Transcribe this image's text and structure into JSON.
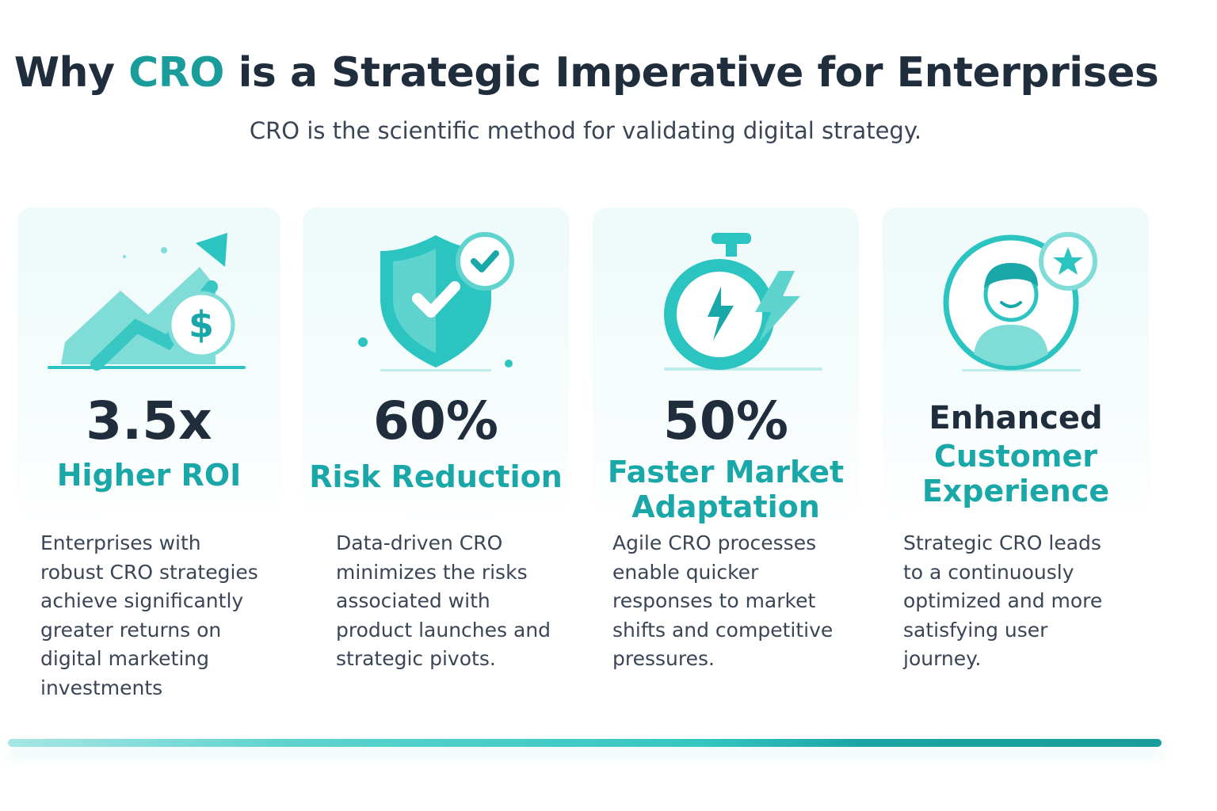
{
  "header": {
    "title": {
      "before": "Why",
      "highlight": "CRO",
      "after": "is a Strategic Imperative for Enterprises"
    },
    "subtitle": "CRO is the scientific method for validating digital strategy."
  },
  "cards": [
    {
      "stat": "3.5x",
      "label": "Higher ROI",
      "body": "Enterprises with robust CRO strategies achieve significantly greater returns on digital marketing investments"
    },
    {
      "stat": "60%",
      "label": "Risk Reduction",
      "body": "Data-driven CRO minimizes the risks associated with product launches and strategic pivots."
    },
    {
      "stat": "50%",
      "label": "Faster Market Adaptation",
      "body": "Agile CRO processes enable quicker responses to market shifts and competitive pressures."
    },
    {
      "stat": "Enhanced",
      "label": "Customer Experience",
      "body": "Strategic CRO leads to a continuously optimized and more satisfying user journey."
    }
  ]
}
